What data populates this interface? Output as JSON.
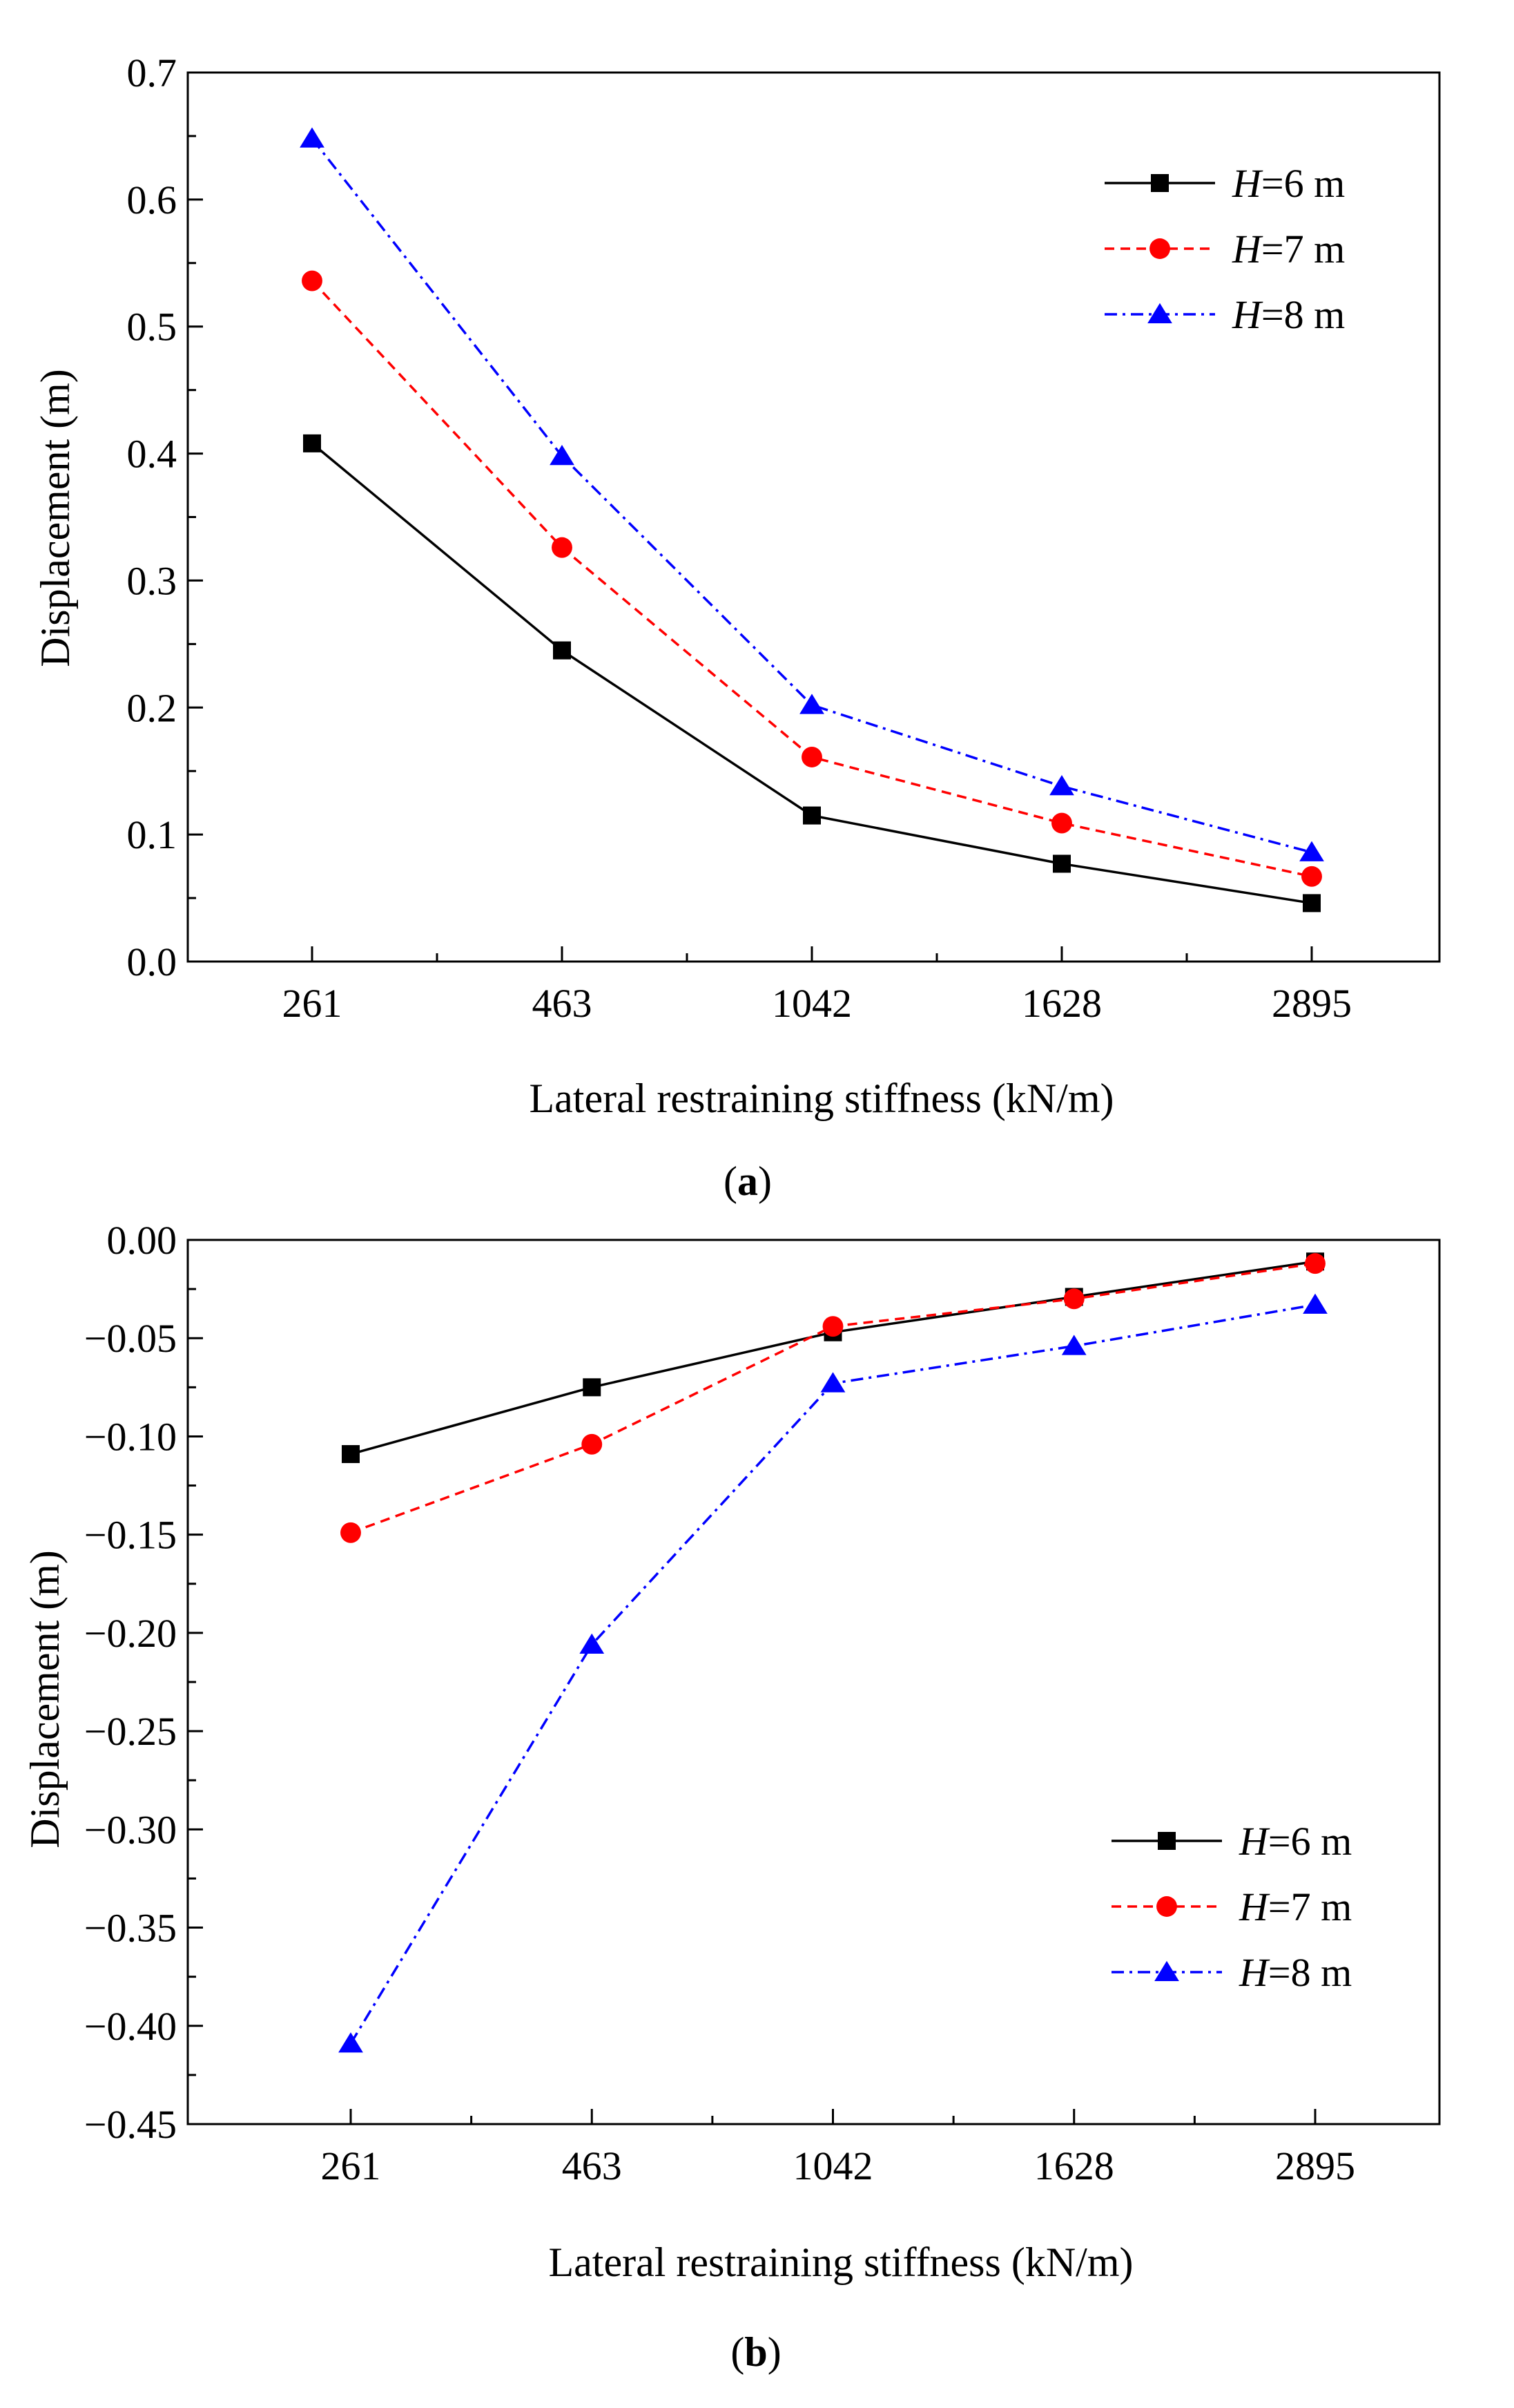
{
  "chart_data": [
    {
      "type": "line",
      "panel_label": "a",
      "xlabel": "Lateral restraining stiffness (kN/m)",
      "ylabel": "Displacement (m)",
      "categories": [
        "261",
        "463",
        "1042",
        "1628",
        "2895"
      ],
      "ylim": [
        0.0,
        0.7
      ],
      "yticks": [
        "0.0",
        "0.1",
        "0.2",
        "0.3",
        "0.4",
        "0.5",
        "0.6",
        "0.7"
      ],
      "legend_position": "top-right",
      "series": [
        {
          "name": "H=6 m",
          "italic": "H",
          "rest": "=6 m",
          "values": [
            0.408,
            0.245,
            0.115,
            0.077,
            0.046
          ]
        },
        {
          "name": "H=7 m",
          "italic": "H",
          "rest": "=7 m",
          "values": [
            0.536,
            0.326,
            0.161,
            0.109,
            0.067
          ]
        },
        {
          "name": "H=8 m",
          "italic": "H",
          "rest": "=8 m",
          "values": [
            0.648,
            0.398,
            0.202,
            0.138,
            0.086
          ]
        }
      ]
    },
    {
      "type": "line",
      "panel_label": "b",
      "xlabel": "Lateral restraining stiffness (kN/m)",
      "ylabel": "Displacement (m)",
      "categories": [
        "261",
        "463",
        "1042",
        "1628",
        "2895"
      ],
      "ylim": [
        -0.45,
        0.0
      ],
      "yticks": [
        "0.00",
        "−0.05",
        "−0.10",
        "−0.15",
        "−0.20",
        "−0.25",
        "−0.30",
        "−0.35",
        "−0.40",
        "−0.45"
      ],
      "legend_position": "bottom-right",
      "series": [
        {
          "name": "H=6 m",
          "italic": "H",
          "rest": "=6 m",
          "values": [
            -0.109,
            -0.075,
            -0.047,
            -0.029,
            -0.011
          ]
        },
        {
          "name": "H=7 m",
          "italic": "H",
          "rest": "=7 m",
          "values": [
            -0.149,
            -0.104,
            -0.044,
            -0.03,
            -0.012
          ]
        },
        {
          "name": "H=8 m",
          "italic": "H",
          "rest": "=8 m",
          "values": [
            -0.409,
            -0.206,
            -0.073,
            -0.054,
            -0.033
          ]
        }
      ]
    }
  ],
  "styles": {
    "series_colors": [
      "#000000",
      "#ff0000",
      "#0000ff"
    ],
    "markers": [
      "square",
      "circle",
      "triangle"
    ],
    "dashes": [
      "none",
      "14,9",
      "18,8,4,8"
    ]
  }
}
